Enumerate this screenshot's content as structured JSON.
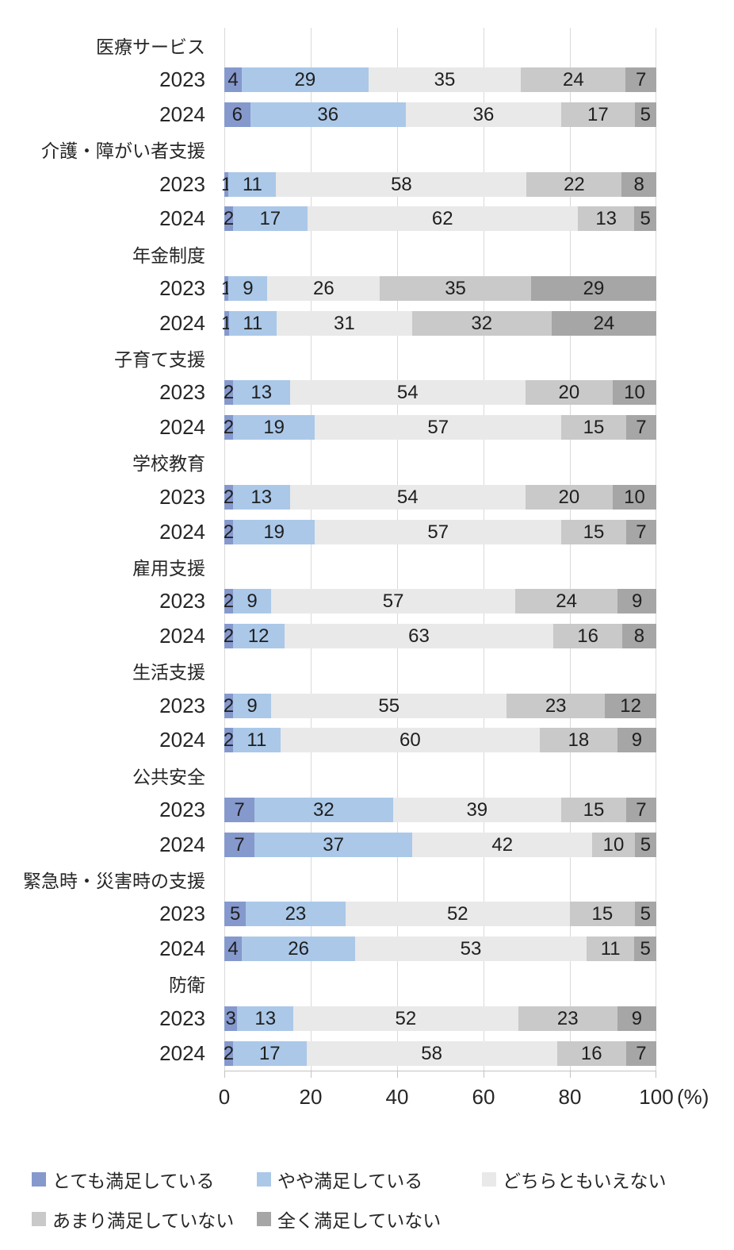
{
  "chart_data": {
    "type": "bar",
    "orientation": "horizontal",
    "stacked": true,
    "normalized_to_100": true,
    "grid": true,
    "legend_position": "bottom",
    "axis": {
      "min": 0,
      "max": 100,
      "ticks": [
        "0",
        "20",
        "40",
        "60",
        "80",
        "100"
      ],
      "unit": "(%)"
    },
    "series": [
      {
        "key": "very-satisfied",
        "name": "とても満足している",
        "color": "#8599cd"
      },
      {
        "key": "somewhat-satisfied",
        "name": "やや満足している",
        "color": "#abc8e8"
      },
      {
        "key": "neutral",
        "name": "どちらともいえない",
        "color": "#e9e9e9"
      },
      {
        "key": "somewhat-dissatisfied",
        "name": "あまり満足していない",
        "color": "#c9c9c9"
      },
      {
        "key": "very-dissatisfied",
        "name": "全く満足していない",
        "color": "#a6a6a6"
      }
    ],
    "legend_rows": [
      [
        0,
        1,
        2
      ],
      [
        3,
        4
      ]
    ],
    "groups": [
      {
        "category": "医療サービス",
        "bars": [
          {
            "label": "2023",
            "values": [
              4,
              29,
              35,
              24,
              7
            ]
          },
          {
            "label": "2024",
            "values": [
              6,
              36,
              36,
              17,
              5
            ]
          }
        ]
      },
      {
        "category": "介護・障がい者支援",
        "bars": [
          {
            "label": "2023",
            "values": [
              1,
              11,
              58,
              22,
              8
            ]
          },
          {
            "label": "2024",
            "values": [
              2,
              17,
              62,
              13,
              5
            ]
          }
        ]
      },
      {
        "category": "年金制度",
        "bars": [
          {
            "label": "2023",
            "values": [
              1,
              9,
              26,
              35,
              29
            ]
          },
          {
            "label": "2024",
            "values": [
              1,
              11,
              31,
              32,
              24
            ]
          }
        ]
      },
      {
        "category": "子育て支援",
        "bars": [
          {
            "label": "2023",
            "values": [
              2,
              13,
              54,
              20,
              10
            ]
          },
          {
            "label": "2024",
            "values": [
              2,
              19,
              57,
              15,
              7
            ]
          }
        ]
      },
      {
        "category": "学校教育",
        "bars": [
          {
            "label": "2023",
            "values": [
              2,
              13,
              54,
              20,
              10
            ]
          },
          {
            "label": "2024",
            "values": [
              2,
              19,
              57,
              15,
              7
            ]
          }
        ]
      },
      {
        "category": "雇用支援",
        "bars": [
          {
            "label": "2023",
            "values": [
              2,
              9,
              57,
              24,
              9
            ]
          },
          {
            "label": "2024",
            "values": [
              2,
              12,
              63,
              16,
              8
            ]
          }
        ]
      },
      {
        "category": "生活支援",
        "bars": [
          {
            "label": "2023",
            "values": [
              2,
              9,
              55,
              23,
              12
            ]
          },
          {
            "label": "2024",
            "values": [
              2,
              11,
              60,
              18,
              9
            ]
          }
        ]
      },
      {
        "category": "公共安全",
        "bars": [
          {
            "label": "2023",
            "values": [
              7,
              32,
              39,
              15,
              7
            ]
          },
          {
            "label": "2024",
            "values": [
              7,
              37,
              42,
              10,
              5
            ]
          }
        ]
      },
      {
        "category": "緊急時・災害時の支援",
        "bars": [
          {
            "label": "2023",
            "values": [
              5,
              23,
              52,
              15,
              5
            ]
          },
          {
            "label": "2024",
            "values": [
              4,
              26,
              53,
              11,
              5
            ]
          }
        ]
      },
      {
        "category": "防衛",
        "bars": [
          {
            "label": "2023",
            "values": [
              3,
              13,
              52,
              23,
              9
            ]
          },
          {
            "label": "2024",
            "values": [
              2,
              17,
              58,
              16,
              7
            ]
          }
        ]
      }
    ]
  }
}
